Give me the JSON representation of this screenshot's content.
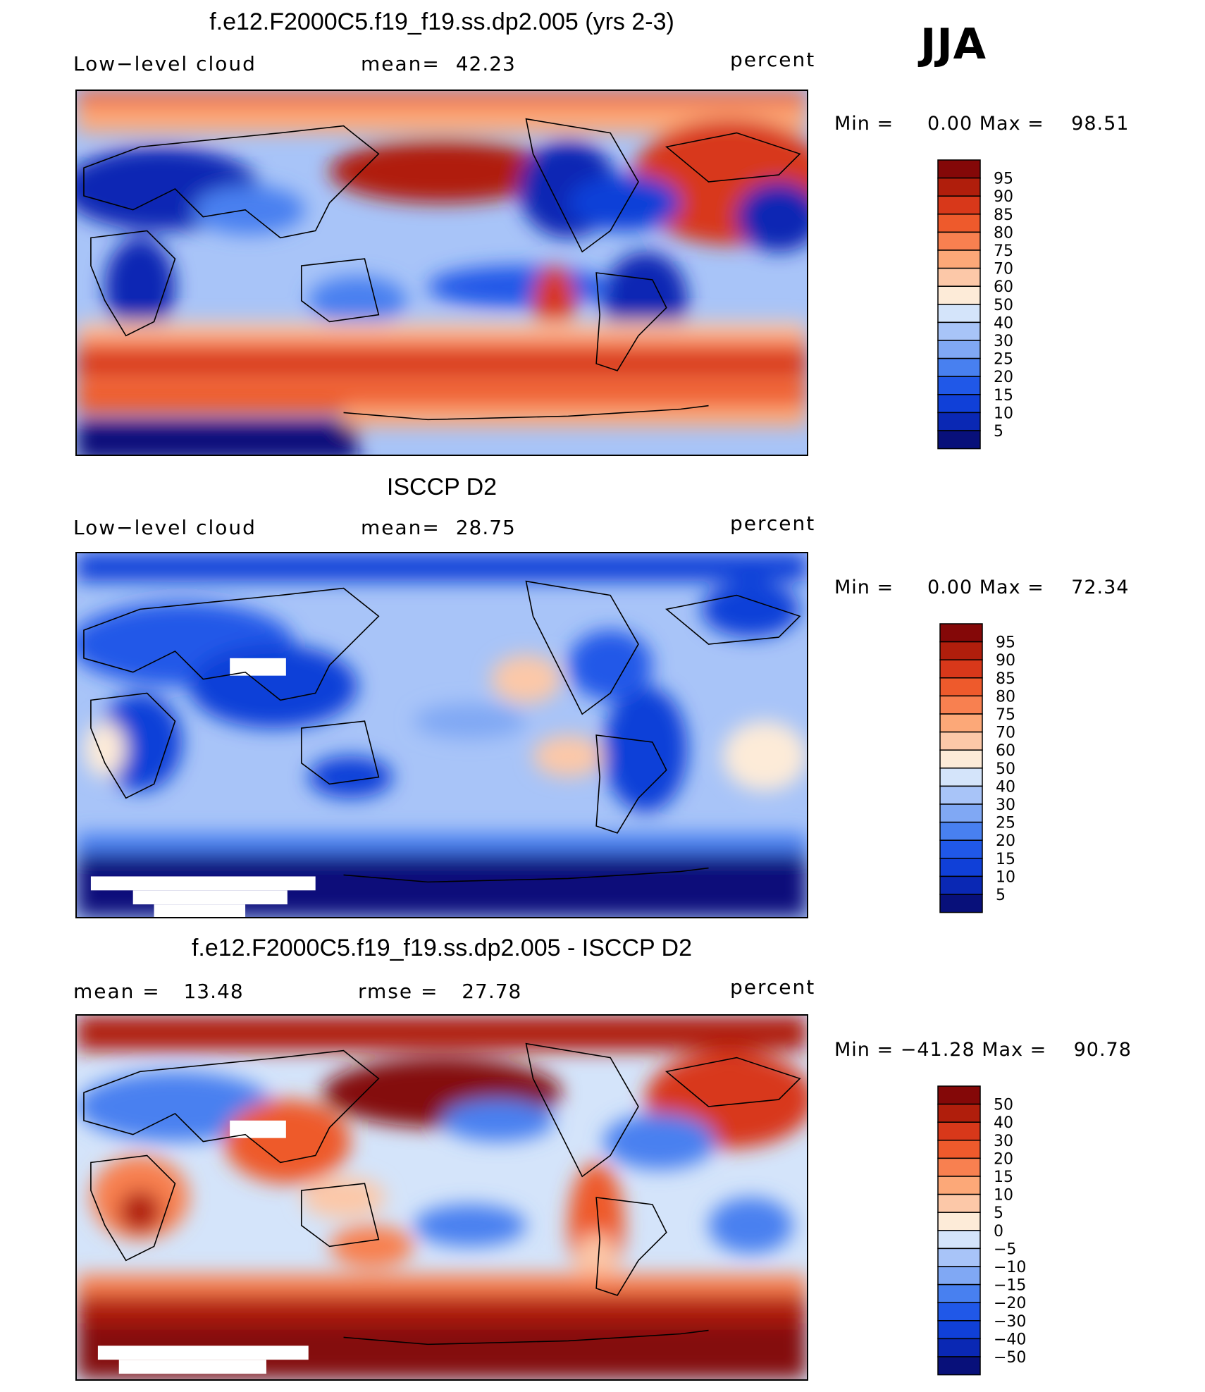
{
  "season": "JJA",
  "colors": {
    "levels_abs": [
      "#08107a",
      "#0a28b4",
      "#1040d8",
      "#2058e8",
      "#4880f0",
      "#80a8f4",
      "#a8c4f8",
      "#d4e4fa",
      "#fdebd8",
      "#fcc8a8",
      "#fca878",
      "#f88050",
      "#ee5a2c",
      "#d8381a",
      "#b01e0c",
      "#840808"
    ],
    "levels_diff": [
      "#08107a",
      "#0a28b4",
      "#1040d8",
      "#2058e8",
      "#4880f0",
      "#80a8f4",
      "#a8c4f8",
      "#d4e4fa",
      "#fdebd8",
      "#fcc8a8",
      "#fca878",
      "#f88050",
      "#ee5a2c",
      "#d8381a",
      "#b01e0c",
      "#840808"
    ]
  },
  "panels": [
    {
      "title": "f.e12.F2000C5.f19_f19.ss.dp2.005 (yrs 2-3)",
      "left_label": "Low−level cloud",
      "mid_label": "mean=",
      "mid_value": "42.23",
      "units": "percent",
      "min_label": "Min =",
      "min_value": "0.00",
      "max_label": "Max =",
      "max_value": "98.51",
      "colorbar_labels": [
        "95",
        "90",
        "85",
        "80",
        "75",
        "70",
        "60",
        "50",
        "40",
        "30",
        "25",
        "20",
        "15",
        "10",
        "5"
      ]
    },
    {
      "title": "ISCCP D2",
      "left_label": "Low−level cloud",
      "mid_label": "mean=",
      "mid_value": "28.75",
      "units": "percent",
      "min_label": "Min =",
      "min_value": "0.00",
      "max_label": "Max =",
      "max_value": "72.34",
      "colorbar_labels": [
        "95",
        "90",
        "85",
        "80",
        "75",
        "70",
        "60",
        "50",
        "40",
        "30",
        "25",
        "20",
        "15",
        "10",
        "5"
      ]
    },
    {
      "title": "f.e12.F2000C5.f19_f19.ss.dp2.005 - ISCCP D2",
      "left_label": "mean =",
      "left_value": "13.48",
      "mid_label": "rmse =",
      "mid_value": "27.78",
      "units": "percent",
      "min_label": "Min =",
      "min_value": "−41.28",
      "max_label": "Max =",
      "max_value": "90.78",
      "colorbar_labels": [
        "50",
        "40",
        "30",
        "20",
        "15",
        "10",
        "5",
        "0",
        "−5",
        "−10",
        "−15",
        "−20",
        "−30",
        "−40",
        "−50"
      ]
    }
  ]
}
